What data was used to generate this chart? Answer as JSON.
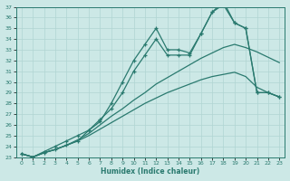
{
  "xlabel": "Humidex (Indice chaleur)",
  "ylabel": "",
  "background_color": "#cce8e6",
  "line_color": "#2a7a6f",
  "grid_color": "#b0d5d2",
  "xlim": [
    -0.5,
    23.5
  ],
  "ylim": [
    23,
    37
  ],
  "xticks": [
    0,
    1,
    2,
    3,
    4,
    5,
    6,
    7,
    8,
    9,
    10,
    11,
    12,
    13,
    14,
    15,
    16,
    17,
    18,
    19,
    20,
    21,
    22,
    23
  ],
  "yticks": [
    23,
    24,
    25,
    26,
    27,
    28,
    29,
    30,
    31,
    32,
    33,
    34,
    35,
    36,
    37
  ],
  "line1_x": [
    0,
    1,
    2,
    3,
    4,
    5,
    6,
    7,
    8,
    9,
    10,
    11,
    12,
    13,
    14,
    15,
    16,
    17,
    18,
    19,
    20,
    21,
    22,
    23
  ],
  "line1_y": [
    23.3,
    23.0,
    23.4,
    23.7,
    24.1,
    24.5,
    25.0,
    25.6,
    26.2,
    26.8,
    27.4,
    28.0,
    28.5,
    29.0,
    29.4,
    29.8,
    30.2,
    30.5,
    30.7,
    30.9,
    30.5,
    29.5,
    29.0,
    28.6
  ],
  "line2_x": [
    0,
    1,
    2,
    3,
    4,
    5,
    6,
    7,
    8,
    9,
    10,
    11,
    12,
    13,
    14,
    15,
    16,
    17,
    18,
    19,
    20,
    21,
    22,
    23
  ],
  "line2_y": [
    23.3,
    23.0,
    23.4,
    23.7,
    24.1,
    24.5,
    25.5,
    26.3,
    28.0,
    30.0,
    32.0,
    33.5,
    35.0,
    33.0,
    33.0,
    32.7,
    34.5,
    36.5,
    37.2,
    35.5,
    35.0,
    29.0,
    29.0,
    28.6
  ],
  "line3_x": [
    0,
    1,
    2,
    3,
    4,
    5,
    6,
    7,
    8,
    9,
    10,
    11,
    12,
    13,
    14,
    15,
    16,
    17,
    18,
    19,
    20,
    21,
    22,
    23
  ],
  "line3_y": [
    23.3,
    23.0,
    23.5,
    24.0,
    24.5,
    25.0,
    25.5,
    26.5,
    27.5,
    29.0,
    31.0,
    32.5,
    34.0,
    32.5,
    32.5,
    32.5,
    34.5,
    36.5,
    37.5,
    35.5,
    35.0,
    29.0,
    29.0,
    28.6
  ],
  "line4_x": [
    0,
    1,
    2,
    3,
    4,
    5,
    6,
    7,
    8,
    9,
    10,
    11,
    12,
    13,
    14,
    15,
    16,
    17,
    18,
    19,
    20,
    21,
    22,
    23
  ],
  "line4_y": [
    23.3,
    23.0,
    23.4,
    23.7,
    24.1,
    24.6,
    25.2,
    26.0,
    26.8,
    27.5,
    28.3,
    29.0,
    29.8,
    30.4,
    31.0,
    31.6,
    32.2,
    32.7,
    33.2,
    33.5,
    33.2,
    32.8,
    32.3,
    31.8
  ]
}
